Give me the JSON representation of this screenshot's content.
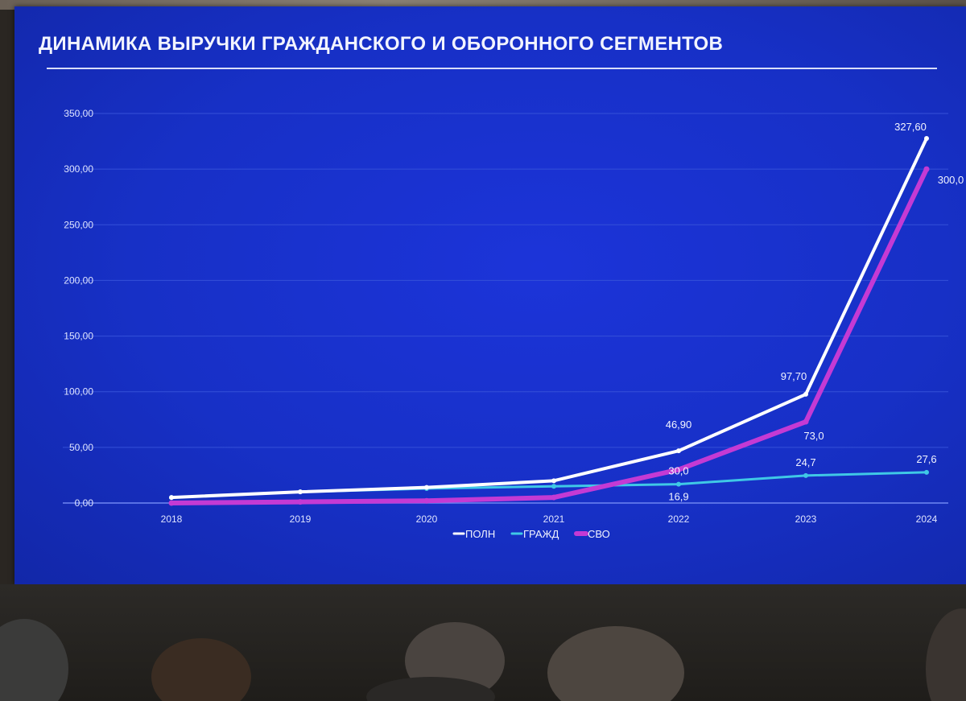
{
  "slide": {
    "title": "ДИНАМИКА ВЫРУЧКИ ГРАЖДАНСКОГО И ОБОРОННОГО СЕГМЕНТОВ"
  },
  "chart_data": {
    "type": "line",
    "title": "ДИНАМИКА ВЫРУЧКИ ГРАЖДАНСКОГО И ОБОРОННОГО СЕГМЕНТОВ",
    "xlabel": "",
    "ylabel": "",
    "categories": [
      "2018",
      "2019",
      "2020",
      "2021",
      "2022",
      "2023",
      "2024"
    ],
    "ylim": [
      0,
      350
    ],
    "yticks": [
      "0,00",
      "50,00",
      "100,00",
      "150,00",
      "200,00",
      "250,00",
      "300,00",
      "350,00"
    ],
    "grid": true,
    "legend_position": "bottom",
    "series": [
      {
        "name": "ПОЛН",
        "color": "#ffffff",
        "values": [
          5,
          10,
          14,
          20,
          46.9,
          97.7,
          327.6
        ],
        "labels": [
          "",
          "",
          "",
          "",
          "46,90",
          "97,70",
          "327,60"
        ]
      },
      {
        "name": "ГРАЖД",
        "color": "#3fc8e6",
        "values": [
          5,
          10,
          13,
          15,
          16.9,
          24.7,
          27.6
        ],
        "labels": [
          "",
          "",
          "",
          "",
          "16,9",
          "24,7",
          "27,6"
        ]
      },
      {
        "name": "СВО",
        "color": "#c43ad4",
        "values": [
          0,
          1,
          2,
          5,
          30,
          73,
          300
        ],
        "labels": [
          "",
          "",
          "",
          "",
          "30,0",
          "73,0",
          "300,0"
        ]
      }
    ]
  }
}
